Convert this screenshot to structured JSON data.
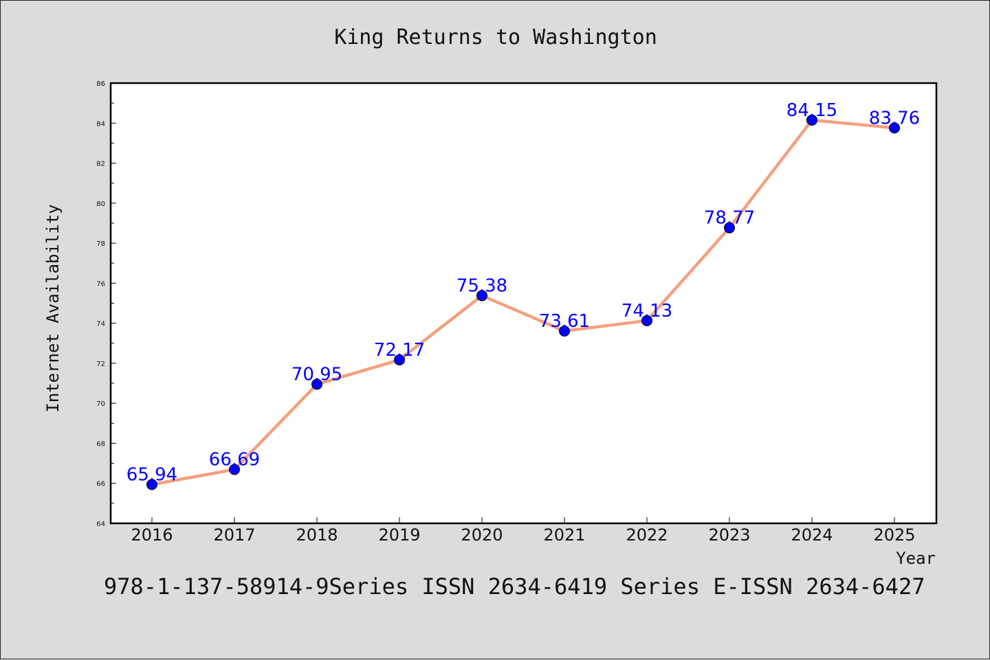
{
  "chart_data": {
    "type": "line",
    "title": "King Returns to Washington",
    "xlabel": "Year",
    "ylabel": "Internet Availability",
    "categories": [
      "2016",
      "2017",
      "2018",
      "2019",
      "2020",
      "2021",
      "2022",
      "2023",
      "2024",
      "2025"
    ],
    "series": [
      {
        "values": [
          65.94,
          66.69,
          70.95,
          72.17,
          75.38,
          73.61,
          74.13,
          78.77,
          84.15,
          83.76
        ],
        "data_labels": [
          "65.94",
          "66.69",
          "70.95",
          "72.17",
          "75.38",
          "73.61",
          "74.13",
          "78.77",
          "84.15",
          "83.76"
        ]
      }
    ],
    "ylim": [
      64,
      86
    ],
    "yticks": [
      "64",
      "66",
      "68",
      "70",
      "72",
      "74",
      "76",
      "78",
      "80",
      "82",
      "84",
      "86"
    ],
    "grid": false,
    "line_color": "#f4a07e",
    "marker_color": "#0000ff",
    "label_color": "#0000ff"
  },
  "footer_text": "978-1-137-58914-9Series ISSN 2634-6419 Series E-ISSN 2634-6427"
}
